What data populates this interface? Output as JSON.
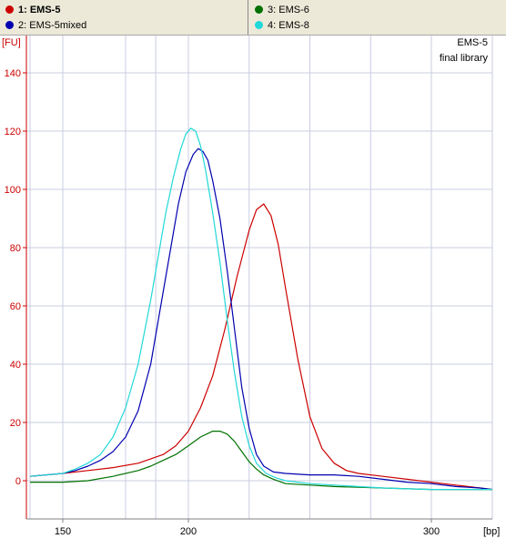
{
  "legend": {
    "items": [
      {
        "label": "1: EMS-5",
        "color": "#cc0000",
        "bold": true
      },
      {
        "label": "2: EMS-5mixed",
        "color": "#0000b0",
        "bold": false
      },
      {
        "label": "3: EMS-6",
        "color": "#007000",
        "bold": false
      },
      {
        "label": "4: EMS-8",
        "color": "#22d8d8",
        "bold": false
      }
    ]
  },
  "chart_data": {
    "type": "line",
    "title": "EMS-5",
    "subtitle": "final library",
    "xlabel": "[bp]",
    "ylabel": "[FU]",
    "xticks": [
      150,
      200,
      300
    ],
    "yticks": [
      0,
      20,
      40,
      60,
      80,
      100,
      120,
      140
    ],
    "grid": true,
    "series": [
      {
        "name": "1: EMS-5",
        "color": "#cc0000",
        "x": [
          137,
          150,
          160,
          170,
          180,
          190,
          195,
          200,
          205,
          210,
          215,
          220,
          225,
          228,
          231,
          234,
          237,
          240,
          245,
          250,
          255,
          260,
          265,
          270,
          280,
          290,
          300,
          310,
          320,
          325
        ],
        "y": [
          1.5,
          2.5,
          3.5,
          4.5,
          6,
          9,
          12,
          17,
          25,
          36,
          52,
          70,
          86,
          93,
          95,
          91,
          81,
          66,
          42,
          22,
          11,
          6,
          3.5,
          2.5,
          1.5,
          0.5,
          -0.5,
          -1.5,
          -2.5,
          -3
        ]
      },
      {
        "name": "2: EMS-5mixed",
        "color": "#0000b0",
        "x": [
          137,
          150,
          155,
          160,
          165,
          170,
          175,
          180,
          185,
          190,
          193,
          196,
          199,
          202,
          204,
          206,
          208,
          210,
          213,
          216,
          219,
          222,
          225,
          228,
          231,
          235,
          240,
          250,
          260,
          270,
          280,
          290,
          300,
          310,
          320,
          325
        ],
        "y": [
          1.5,
          2.5,
          3.5,
          5,
          7,
          10,
          15,
          24,
          40,
          65,
          80,
          95,
          106,
          112,
          114,
          113,
          110,
          103,
          90,
          72,
          52,
          32,
          18,
          9,
          5,
          3,
          2.5,
          2,
          2,
          1.5,
          0.5,
          -0.5,
          -1,
          -2,
          -2.5,
          -3
        ]
      },
      {
        "name": "3: EMS-6",
        "color": "#007000",
        "x": [
          137,
          150,
          160,
          170,
          180,
          185,
          190,
          195,
          200,
          205,
          210,
          213,
          216,
          219,
          222,
          225,
          228,
          231,
          235,
          240,
          250,
          260,
          280,
          300,
          325
        ],
        "y": [
          -0.5,
          -0.5,
          0,
          1.5,
          3.5,
          5,
          7,
          9,
          12,
          15,
          17,
          17,
          16,
          13.5,
          10,
          6.5,
          4,
          2,
          0.5,
          -1,
          -1.5,
          -2,
          -2.5,
          -3,
          -3
        ]
      },
      {
        "name": "4: EMS-8",
        "color": "#22d8d8",
        "x": [
          137,
          150,
          155,
          160,
          165,
          170,
          175,
          180,
          185,
          188,
          191,
          194,
          197,
          199,
          201,
          203,
          205,
          207,
          210,
          213,
          216,
          219,
          222,
          225,
          228,
          232,
          236,
          240,
          250,
          260,
          280,
          300,
          325
        ],
        "y": [
          1.5,
          2.5,
          4,
          6,
          9,
          15,
          25,
          40,
          62,
          77,
          92,
          104,
          114,
          119,
          121,
          120,
          115,
          107,
          92,
          75,
          55,
          37,
          22,
          12,
          6,
          2.5,
          1,
          0,
          -1,
          -1.5,
          -2.5,
          -3,
          -3
        ]
      }
    ]
  }
}
